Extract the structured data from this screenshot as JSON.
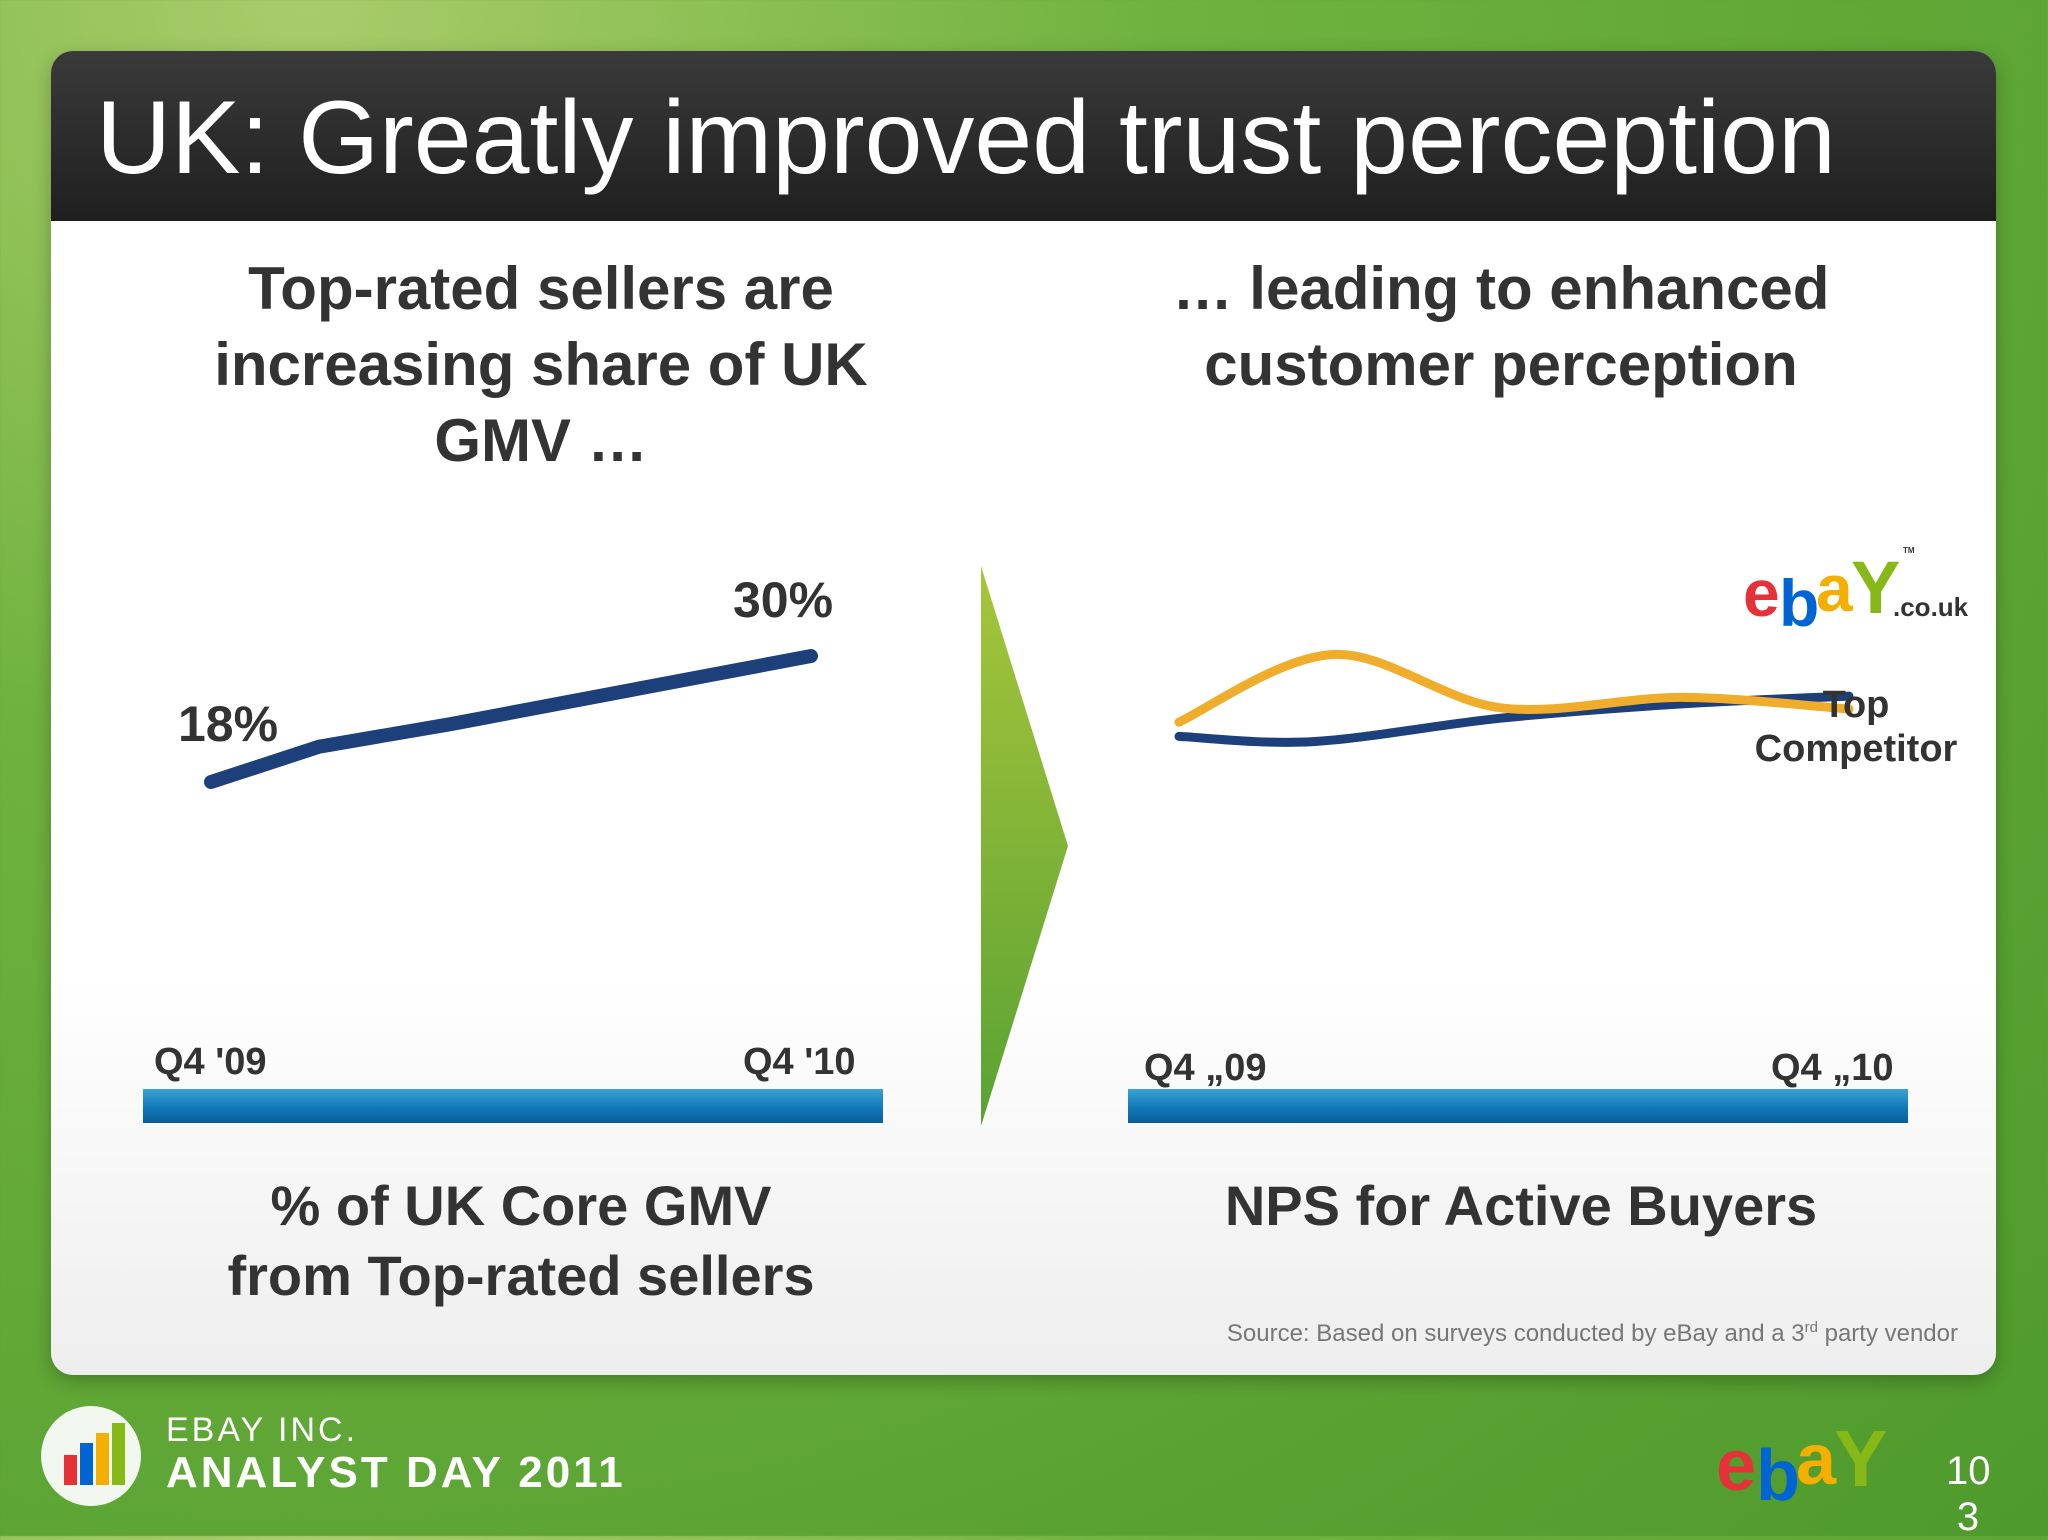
{
  "slide": {
    "title": "UK: Greatly improved trust perception",
    "source_prefix": "Source: Based on surveys conducted by eBay and a 3",
    "source_sup": "rd",
    "source_suffix": " party vendor"
  },
  "left": {
    "heading_lines": [
      "Top-rated sellers are",
      "increasing share of UK",
      "GMV …"
    ],
    "caption_lines": [
      "% of UK Core GMV",
      "from Top-rated sellers"
    ]
  },
  "right": {
    "heading_lines": [
      "… leading to enhanced",
      "customer perception"
    ],
    "caption": "NPS for Active Buyers",
    "logo_tm": "TM",
    "logo_suffix": ".co.uk"
  },
  "footer": {
    "brand_line1": "EBAY INC.",
    "brand_line2": "ANALYST DAY 2011",
    "page_number_lines": [
      "10",
      "3"
    ]
  },
  "colors": {
    "ebay_line": "#1d3f7a",
    "competitor_line": "#f0ad2b",
    "ebay_e": "#e53238",
    "ebay_b": "#0064d2",
    "ebay_a": "#f5af02",
    "ebay_y": "#86b817"
  },
  "chart_data": [
    {
      "type": "line",
      "x": [
        "Q4 '09",
        "Q4 '10"
      ],
      "series": [
        {
          "values": [
            18,
            30
          ],
          "data_labels": [
            "18%",
            "30%"
          ]
        }
      ],
      "title": "",
      "xlabel": "% of UK Core GMV from Top-rated sellers",
      "ylabel": "",
      "grid": false
    },
    {
      "type": "line",
      "x": [
        "Q4 „09",
        "Q4 „10"
      ],
      "series": [
        {
          "name": "ebay.co.uk",
          "points": [
            [
              0,
              32
            ],
            [
              0.2,
              28
            ],
            [
              0.48,
              46
            ],
            [
              0.75,
              57
            ],
            [
              1,
              63
            ]
          ]
        },
        {
          "name": "Top Competitor",
          "points": [
            [
              0,
              43
            ],
            [
              0.23,
              95
            ],
            [
              0.48,
              54
            ],
            [
              0.75,
              62
            ],
            [
              1,
              53
            ]
          ]
        }
      ],
      "title": "",
      "xlabel": "NPS for Active Buyers",
      "ylabel": "",
      "grid": false
    }
  ]
}
